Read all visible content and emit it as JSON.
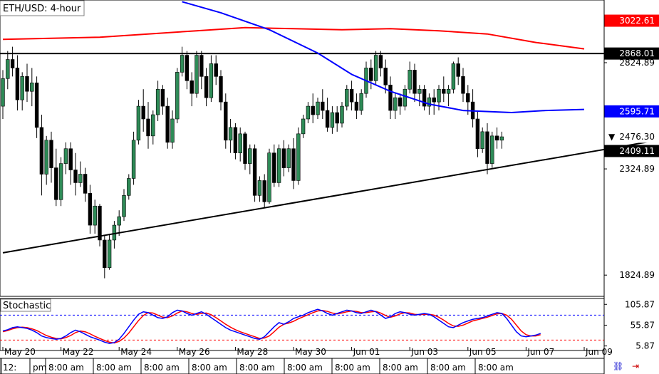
{
  "chart_data": {
    "type": "candlestick",
    "symbol_label": "ETH/USD: 4-hour",
    "indicator_label": "Stochastic",
    "price_axis": {
      "ylim": [
        1724.89,
        3120.0
      ],
      "ticks": [
        {
          "value": 2824.89,
          "label": "2824.89"
        },
        {
          "value": 2324.89,
          "label": "2324.89"
        },
        {
          "value": 1824.89,
          "label": "1824.89"
        }
      ]
    },
    "price_tags": [
      {
        "value": 3022.61,
        "label": "3022.61",
        "bg": "#ff0000",
        "fg": "#ffffff"
      },
      {
        "value": 2868.01,
        "label": "2868.01",
        "bg": "#000000",
        "fg": "#ffffff"
      },
      {
        "value": 2595.71,
        "label": "2595.71",
        "bg": "#0000ff",
        "fg": "#ffffff"
      },
      {
        "value": 2476.3,
        "label": "2476.30",
        "bg": "#ffffff",
        "fg": "#000000",
        "marker": "▼"
      },
      {
        "value": 2409.11,
        "label": "2409.11",
        "bg": "#000000",
        "fg": "#ffffff"
      }
    ],
    "stoch_axis": {
      "ylim": [
        -5,
        120
      ],
      "ticks": [
        {
          "value": 105.87,
          "label": "105.87"
        },
        {
          "value": 55.87,
          "label": "55.87"
        },
        {
          "value": 5.87,
          "label": "5.87"
        }
      ],
      "levels": [
        {
          "value": 80,
          "color": "#0000ff"
        },
        {
          "value": 20,
          "color": "#ff0000"
        }
      ]
    },
    "date_labels": [
      {
        "index": 0,
        "label": "May 20"
      },
      {
        "index": 12,
        "label": "May 22"
      },
      {
        "index": 24,
        "label": "May 24"
      },
      {
        "index": 36,
        "label": "May 26"
      },
      {
        "index": 48,
        "label": "May 28"
      },
      {
        "index": 60,
        "label": "May 30"
      },
      {
        "index": 72,
        "label": "Jun 01"
      },
      {
        "index": 84,
        "label": "Jun 03"
      },
      {
        "index": 96,
        "label": "Jun 05"
      },
      {
        "index": 108,
        "label": "Jun 07"
      },
      {
        "index": 120,
        "label": "Jun 09"
      }
    ],
    "time_labels": [
      "12:",
      "pm",
      "8:00 am",
      "8:00 am",
      "8:00 am",
      "8:00 am",
      "8:00 am",
      "8:00 am",
      "8:00 am",
      "8:00 am",
      "8:00 am",
      "8:00 am"
    ],
    "horizontal_line": {
      "value": 2868.01,
      "color": "#000000"
    },
    "trendline": {
      "from": {
        "index": 0,
        "value": 1930
      },
      "to": {
        "index": 148,
        "value": 2510
      },
      "color": "#000000"
    },
    "ma_red": {
      "color": "#ff0000",
      "points": [
        [
          0,
          2935
        ],
        [
          20,
          2945
        ],
        [
          40,
          2975
        ],
        [
          50,
          2990
        ],
        [
          60,
          2985
        ],
        [
          70,
          2980
        ],
        [
          80,
          2985
        ],
        [
          90,
          2975
        ],
        [
          100,
          2960
        ],
        [
          110,
          2920
        ],
        [
          120,
          2890
        ]
      ]
    },
    "ma_blue": {
      "color": "#0000ff",
      "points": [
        [
          37,
          3112
        ],
        [
          45,
          3060
        ],
        [
          55,
          2980
        ],
        [
          65,
          2870
        ],
        [
          72,
          2770
        ],
        [
          80,
          2690
        ],
        [
          88,
          2630
        ],
        [
          95,
          2600
        ],
        [
          105,
          2590
        ],
        [
          112,
          2600
        ],
        [
          120,
          2605
        ]
      ]
    },
    "candle_colors": {
      "up": "#2e8b57",
      "down": "#000000"
    },
    "candles": [
      [
        2620,
        2790,
        2560,
        2750
      ],
      [
        2750,
        2880,
        2700,
        2840
      ],
      [
        2840,
        2900,
        2760,
        2800
      ],
      [
        2800,
        2860,
        2600,
        2650
      ],
      [
        2650,
        2780,
        2600,
        2760
      ],
      [
        2760,
        2820,
        2640,
        2690
      ],
      [
        2690,
        2800,
        2620,
        2730
      ],
      [
        2730,
        2760,
        2470,
        2520
      ],
      [
        2520,
        2580,
        2200,
        2300
      ],
      [
        2300,
        2480,
        2250,
        2460
      ],
      [
        2460,
        2500,
        2260,
        2330
      ],
      [
        2330,
        2420,
        2150,
        2180
      ],
      [
        2180,
        2380,
        2150,
        2350
      ],
      [
        2350,
        2450,
        2300,
        2420
      ],
      [
        2420,
        2450,
        2250,
        2320
      ],
      [
        2320,
        2400,
        2200,
        2260
      ],
      [
        2260,
        2360,
        2240,
        2300
      ],
      [
        2300,
        2330,
        2170,
        2210
      ],
      [
        2210,
        2250,
        2020,
        2060
      ],
      [
        2060,
        2180,
        2020,
        2150
      ],
      [
        2150,
        2160,
        1960,
        1990
      ],
      [
        1990,
        2010,
        1810,
        1860
      ],
      [
        1860,
        2020,
        1850,
        1990
      ],
      [
        1990,
        2080,
        1950,
        2060
      ],
      [
        2060,
        2130,
        2010,
        2100
      ],
      [
        2100,
        2230,
        2080,
        2200
      ],
      [
        2200,
        2300,
        2180,
        2280
      ],
      [
        2280,
        2500,
        2250,
        2460
      ],
      [
        2460,
        2650,
        2440,
        2620
      ],
      [
        2620,
        2700,
        2500,
        2560
      ],
      [
        2560,
        2640,
        2420,
        2480
      ],
      [
        2480,
        2600,
        2440,
        2580
      ],
      [
        2580,
        2740,
        2550,
        2700
      ],
      [
        2700,
        2720,
        2580,
        2620
      ],
      [
        2620,
        2660,
        2420,
        2450
      ],
      [
        2450,
        2600,
        2420,
        2560
      ],
      [
        2560,
        2800,
        2540,
        2780
      ],
      [
        2780,
        2900,
        2760,
        2860
      ],
      [
        2860,
        2880,
        2700,
        2740
      ],
      [
        2740,
        2780,
        2620,
        2680
      ],
      [
        2680,
        2880,
        2660,
        2860
      ],
      [
        2860,
        2880,
        2700,
        2760
      ],
      [
        2760,
        2800,
        2620,
        2660
      ],
      [
        2660,
        2860,
        2640,
        2820
      ],
      [
        2820,
        2860,
        2720,
        2760
      ],
      [
        2760,
        2790,
        2600,
        2640
      ],
      [
        2640,
        2680,
        2420,
        2460
      ],
      [
        2460,
        2560,
        2400,
        2520
      ],
      [
        2520,
        2540,
        2370,
        2400
      ],
      [
        2400,
        2520,
        2360,
        2490
      ],
      [
        2490,
        2500,
        2320,
        2350
      ],
      [
        2350,
        2440,
        2300,
        2420
      ],
      [
        2420,
        2440,
        2170,
        2200
      ],
      [
        2200,
        2290,
        2170,
        2270
      ],
      [
        2270,
        2300,
        2140,
        2170
      ],
      [
        2170,
        2420,
        2160,
        2400
      ],
      [
        2400,
        2440,
        2240,
        2260
      ],
      [
        2260,
        2440,
        2240,
        2420
      ],
      [
        2420,
        2460,
        2290,
        2330
      ],
      [
        2330,
        2440,
        2310,
        2420
      ],
      [
        2420,
        2470,
        2230,
        2270
      ],
      [
        2270,
        2520,
        2250,
        2490
      ],
      [
        2490,
        2580,
        2470,
        2560
      ],
      [
        2560,
        2640,
        2540,
        2620
      ],
      [
        2620,
        2680,
        2540,
        2580
      ],
      [
        2580,
        2660,
        2560,
        2640
      ],
      [
        2640,
        2700,
        2560,
        2600
      ],
      [
        2600,
        2660,
        2500,
        2520
      ],
      [
        2520,
        2620,
        2490,
        2590
      ],
      [
        2590,
        2620,
        2500,
        2540
      ],
      [
        2540,
        2640,
        2520,
        2620
      ],
      [
        2620,
        2720,
        2600,
        2700
      ],
      [
        2700,
        2740,
        2600,
        2640
      ],
      [
        2640,
        2680,
        2560,
        2600
      ],
      [
        2600,
        2700,
        2580,
        2680
      ],
      [
        2680,
        2830,
        2660,
        2800
      ],
      [
        2800,
        2840,
        2700,
        2740
      ],
      [
        2740,
        2880,
        2720,
        2860
      ],
      [
        2860,
        2880,
        2760,
        2800
      ],
      [
        2800,
        2840,
        2680,
        2720
      ],
      [
        2720,
        2760,
        2560,
        2600
      ],
      [
        2600,
        2680,
        2560,
        2660
      ],
      [
        2660,
        2680,
        2580,
        2620
      ],
      [
        2620,
        2720,
        2600,
        2700
      ],
      [
        2700,
        2830,
        2680,
        2790
      ],
      [
        2790,
        2820,
        2640,
        2680
      ],
      [
        2680,
        2720,
        2620,
        2700
      ],
      [
        2700,
        2720,
        2600,
        2620
      ],
      [
        2620,
        2680,
        2580,
        2660
      ],
      [
        2660,
        2700,
        2580,
        2640
      ],
      [
        2640,
        2720,
        2600,
        2700
      ],
      [
        2700,
        2760,
        2640,
        2680
      ],
      [
        2680,
        2720,
        2620,
        2700
      ],
      [
        2700,
        2830,
        2680,
        2820
      ],
      [
        2820,
        2850,
        2720,
        2760
      ],
      [
        2760,
        2800,
        2640,
        2680
      ],
      [
        2680,
        2720,
        2580,
        2640
      ],
      [
        2640,
        2700,
        2520,
        2560
      ],
      [
        2560,
        2600,
        2380,
        2420
      ],
      [
        2420,
        2520,
        2400,
        2500
      ],
      [
        2500,
        2540,
        2300,
        2350
      ],
      [
        2350,
        2500,
        2330,
        2480
      ],
      [
        2480,
        2520,
        2420,
        2460
      ],
      [
        2460,
        2500,
        2420,
        2476
      ]
    ],
    "stochastic": {
      "k": [
        42,
        45,
        50,
        52,
        50,
        48,
        44,
        38,
        30,
        26,
        24,
        22,
        24,
        30,
        38,
        44,
        40,
        34,
        28,
        24,
        20,
        15,
        12,
        14,
        22,
        36,
        52,
        68,
        82,
        88,
        86,
        80,
        74,
        72,
        76,
        86,
        92,
        90,
        84,
        80,
        84,
        88,
        82,
        74,
        66,
        58,
        50,
        44,
        40,
        36,
        32,
        28,
        24,
        22,
        28,
        40,
        52,
        62,
        58,
        64,
        72,
        76,
        80,
        86,
        90,
        94,
        90,
        84,
        80,
        84,
        88,
        92,
        90,
        86,
        84,
        88,
        92,
        88,
        80,
        72,
        76,
        84,
        88,
        86,
        82,
        80,
        82,
        84,
        82,
        76,
        68,
        60,
        52,
        50,
        56,
        62,
        66,
        70,
        72,
        74,
        78,
        82,
        86,
        84,
        72,
        56,
        40,
        30,
        28,
        30,
        32,
        36
      ],
      "d": [
        40,
        43,
        47,
        50,
        51,
        50,
        47,
        43,
        37,
        31,
        27,
        24,
        23,
        26,
        31,
        38,
        42,
        40,
        35,
        29,
        24,
        19,
        15,
        13,
        17,
        25,
        37,
        52,
        67,
        79,
        86,
        85,
        80,
        75,
        74,
        78,
        85,
        90,
        88,
        84,
        82,
        84,
        85,
        81,
        74,
        66,
        58,
        51,
        45,
        40,
        36,
        32,
        28,
        24,
        25,
        30,
        40,
        51,
        58,
        61,
        65,
        71,
        76,
        81,
        86,
        90,
        91,
        89,
        85,
        83,
        85,
        88,
        90,
        89,
        86,
        86,
        88,
        89,
        85,
        79,
        75,
        78,
        83,
        86,
        85,
        82,
        81,
        82,
        82,
        80,
        75,
        68,
        60,
        54,
        53,
        56,
        61,
        66,
        69,
        72,
        75,
        79,
        83,
        84,
        80,
        70,
        56,
        42,
        33,
        30,
        30,
        33
      ]
    },
    "k_color": "#0000ff",
    "d_color": "#ff0000"
  }
}
